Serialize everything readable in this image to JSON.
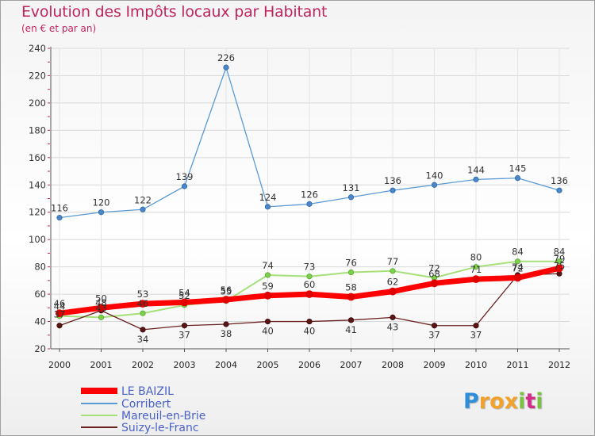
{
  "chart_data": {
    "type": "line",
    "title": "Evolution des Impôts locaux par Habitant",
    "subtitle": "(en € et par an)",
    "categories": [
      "2000",
      "2001",
      "2002",
      "2003",
      "2004",
      "2005",
      "2006",
      "2007",
      "2008",
      "2009",
      "2010",
      "2011",
      "2012"
    ],
    "ylim": [
      20,
      240
    ],
    "yticks": [
      20,
      40,
      60,
      80,
      100,
      120,
      140,
      160,
      180,
      200,
      220,
      240
    ],
    "grid": true,
    "legend_position": "bottom-left",
    "series": [
      {
        "name": "LE BAIZIL",
        "color": "#ff0000",
        "values": [
          46,
          50,
          53,
          54,
          56,
          59,
          60,
          58,
          62,
          68,
          71,
          72,
          79
        ]
      },
      {
        "name": "Corribert",
        "color": "#5b9bd5",
        "values": [
          116,
          120,
          122,
          139,
          226,
          124,
          126,
          131,
          136,
          140,
          144,
          145,
          136
        ]
      },
      {
        "name": "Mareuil-en-Brie",
        "color": "#99dd6d",
        "values": [
          44,
          43,
          46,
          52,
          55,
          74,
          73,
          76,
          77,
          72,
          80,
          84,
          84
        ]
      },
      {
        "name": "Suizy-le-Franc",
        "color": "#6b2121",
        "values": [
          37,
          48,
          34,
          37,
          38,
          40,
          40,
          41,
          43,
          37,
          37,
          74,
          75
        ]
      }
    ],
    "visible_labels": {
      "LE BAIZIL": [
        "46",
        "50",
        "53",
        "54",
        "56",
        "59",
        "60",
        "58",
        "62",
        "68",
        "71",
        "72",
        "79"
      ],
      "Corribert": [
        "116",
        "120",
        "122",
        "139",
        "226",
        "124",
        "126",
        "131",
        "136",
        "140",
        "144",
        "145",
        "136"
      ],
      "Mareuil-en-Brie": [
        "44",
        "43",
        "46",
        "52",
        "55",
        "74",
        "73",
        "76",
        "77",
        "72",
        "80",
        "84",
        "84"
      ],
      "Suizy-le-Franc": [
        "37",
        "48",
        "34",
        "37",
        "38",
        "40",
        "40",
        "41",
        "43",
        "37",
        "37",
        "74",
        "75"
      ]
    }
  },
  "logo": {
    "letters": [
      {
        "ch": "P",
        "color": "#2e8fd8"
      },
      {
        "ch": "r",
        "color": "#f2a22a"
      },
      {
        "ch": "o",
        "color": "#f2a22a"
      },
      {
        "ch": "x",
        "color": "#f2a22a"
      },
      {
        "ch": "i",
        "color": "#7cc242"
      },
      {
        "ch": "t",
        "color": "#d22d88"
      },
      {
        "ch": "i",
        "color": "#7cc242"
      }
    ]
  }
}
